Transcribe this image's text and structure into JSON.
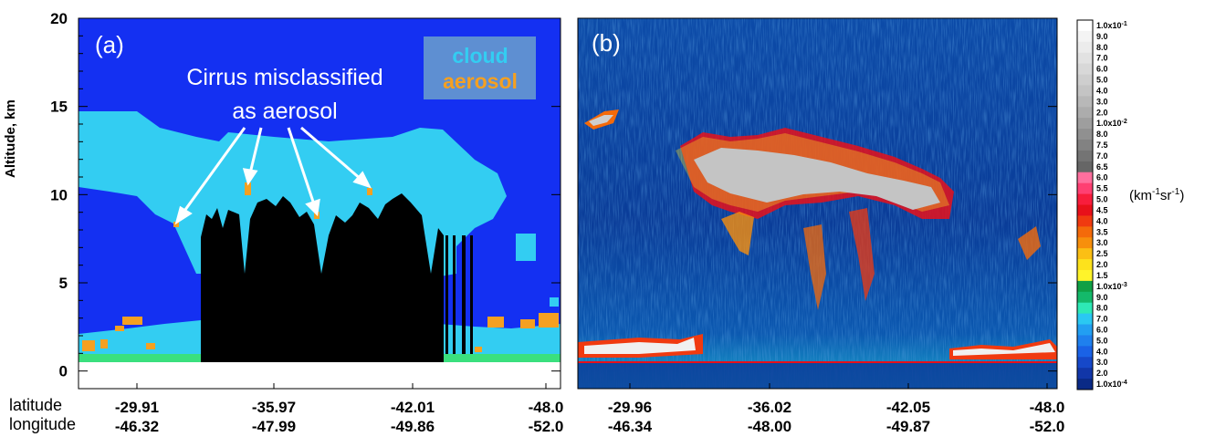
{
  "labels": {
    "y_axis": "Altitude, km",
    "row_latitude": "latitude",
    "row_longitude": "longitude",
    "units_base": "(km",
    "units_exp1": "-1",
    "units_mid": "sr",
    "units_exp2": "-1",
    "units_end": ")"
  },
  "colors": {
    "cloud": "#33cdf2",
    "aerosol": "#f5a021",
    "clear_air": "#1430f2",
    "surface": "#000000",
    "ground_strip": "#3ae07e",
    "lidar_background": "#0a3796"
  },
  "chart_data": [
    {
      "type": "heatmap",
      "panel_label": "(a)",
      "title": "",
      "xlabel": "",
      "ylabel": "Altitude, km",
      "ylim": [
        -1,
        20
      ],
      "yticks": [
        0,
        5,
        10,
        15,
        20
      ],
      "x_tick_latitude": [
        "-29.91",
        "-35.97",
        "-42.01",
        "-48.0"
      ],
      "x_tick_longitude": [
        "-46.32",
        "-47.99",
        "-49.86",
        "-52.0"
      ],
      "legend": {
        "placement": "top-right",
        "entries": [
          "cloud",
          "aerosol"
        ]
      },
      "annotation": {
        "lines": [
          "Cirrus misclassified",
          "as aerosol"
        ],
        "arrow_count": 4
      },
      "classes": [
        "clear air",
        "cloud",
        "aerosol",
        "surface"
      ]
    },
    {
      "type": "heatmap",
      "panel_label": "(b)",
      "title": "",
      "xlabel": "",
      "ylabel": "",
      "ylim": [
        -1,
        20
      ],
      "x_tick_latitude": [
        "-29.96",
        "-36.02",
        "-42.05",
        "-48.0"
      ],
      "x_tick_longitude": [
        "-46.34",
        "-48.00",
        "-49.87",
        "-52.0"
      ],
      "colorbar": {
        "units": "(km-1sr-1)",
        "labels": [
          "1.0x10-1",
          "9.0",
          "8.0",
          "7.0",
          "6.0",
          "5.0",
          "4.0",
          "3.0",
          "2.0",
          "1.0x10-2",
          "8.0",
          "7.5",
          "7.0",
          "6.5",
          "6.0",
          "5.5",
          "5.0",
          "4.5",
          "4.0",
          "3.5",
          "3.0",
          "2.5",
          "2.0",
          "1.5",
          "1.0x10-3",
          "9.0",
          "8.0",
          "7.0",
          "6.0",
          "5.0",
          "4.0",
          "3.0",
          "2.0",
          "1.0x10-4"
        ],
        "colors": [
          "#ffffff",
          "#f4f4f4",
          "#ececec",
          "#e2e2e2",
          "#d8d8d8",
          "#cecece",
          "#c4c4c4",
          "#b8b8b8",
          "#acacac",
          "#9e9e9e",
          "#909090",
          "#828282",
          "#747474",
          "#666666",
          "#ff6f9e",
          "#ff3f72",
          "#f81d3c",
          "#e8101a",
          "#f03a10",
          "#f46a0a",
          "#f78f0c",
          "#fbbf14",
          "#fde21c",
          "#fff42a",
          "#10a045",
          "#14b96a",
          "#2ee9b6",
          "#2ac8f2",
          "#229ff2",
          "#1f80ee",
          "#1a62e6",
          "#1648c9",
          "#1136a8",
          "#0a2a86"
        ]
      }
    }
  ]
}
